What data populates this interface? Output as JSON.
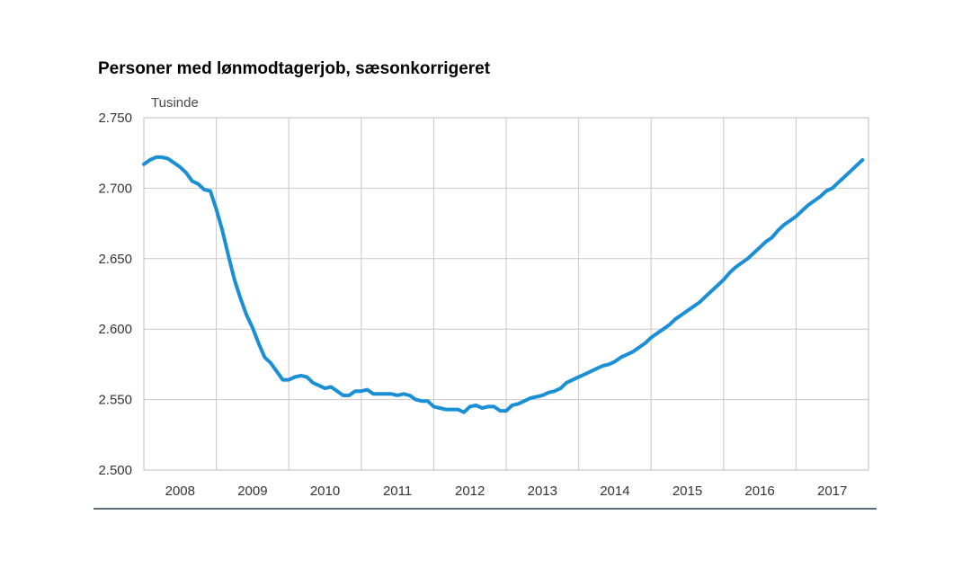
{
  "title": "Personer med lønmodtagerjob, sæsonkorrigeret",
  "unit_label": "Tusinde",
  "chart_data": {
    "type": "line",
    "title": "Personer med lønmodtagerjob, sæsonkorrigeret",
    "ylabel": "Tusinde",
    "xlabel": "",
    "ylim": [
      2500,
      2750
    ],
    "xlim": [
      2008.0,
      2018.0
    ],
    "y_ticks": [
      2500,
      2550,
      2600,
      2650,
      2700,
      2750
    ],
    "y_tick_labels": [
      "2.500",
      "2.550",
      "2.600",
      "2.650",
      "2.700",
      "2.750"
    ],
    "x_tick_labels": [
      "2008",
      "2009",
      "2010",
      "2011",
      "2012",
      "2013",
      "2014",
      "2015",
      "2016",
      "2017"
    ],
    "grid": true,
    "line_color": "#1a8fd6",
    "series": [
      {
        "x": [
          2008.0,
          2008.083,
          2008.167,
          2008.25,
          2008.333,
          2008.417,
          2008.5,
          2008.583,
          2008.667,
          2008.75,
          2008.833,
          2008.917,
          2009.0,
          2009.083,
          2009.167,
          2009.25,
          2009.333,
          2009.417,
          2009.5,
          2009.583,
          2009.667,
          2009.75,
          2009.833,
          2009.917,
          2010.0,
          2010.083,
          2010.167,
          2010.25,
          2010.333,
          2010.417,
          2010.5,
          2010.583,
          2010.667,
          2010.75,
          2010.833,
          2010.917,
          2011.0,
          2011.083,
          2011.167,
          2011.25,
          2011.333,
          2011.417,
          2011.5,
          2011.583,
          2011.667,
          2011.75,
          2011.833,
          2011.917,
          2012.0,
          2012.083,
          2012.167,
          2012.25,
          2012.333,
          2012.417,
          2012.5,
          2012.583,
          2012.667,
          2012.75,
          2012.833,
          2012.917,
          2013.0,
          2013.083,
          2013.167,
          2013.25,
          2013.333,
          2013.417,
          2013.5,
          2013.583,
          2013.667,
          2013.75,
          2013.833,
          2013.917,
          2014.0,
          2014.083,
          2014.167,
          2014.25,
          2014.333,
          2014.417,
          2014.5,
          2014.583,
          2014.667,
          2014.75,
          2014.833,
          2014.917,
          2015.0,
          2015.083,
          2015.167,
          2015.25,
          2015.333,
          2015.417,
          2015.5,
          2015.583,
          2015.667,
          2015.75,
          2015.833,
          2015.917,
          2016.0,
          2016.083,
          2016.167,
          2016.25,
          2016.333,
          2016.417,
          2016.5,
          2016.583,
          2016.667,
          2016.75,
          2016.833,
          2016.917,
          2017.0,
          2017.083,
          2017.167,
          2017.25,
          2017.333,
          2017.417,
          2017.5,
          2017.583,
          2017.667,
          2017.75,
          2017.833,
          2017.917
        ],
        "values": [
          2717,
          2720,
          2722,
          2722,
          2721,
          2718,
          2715,
          2711,
          2705,
          2703,
          2699,
          2698,
          2685,
          2670,
          2652,
          2635,
          2622,
          2610,
          2601,
          2590,
          2580,
          2576,
          2570,
          2564,
          2564,
          2566,
          2567,
          2566,
          2562,
          2560,
          2558,
          2559,
          2556,
          2553,
          2553,
          2556,
          2556,
          2557,
          2554,
          2554,
          2554,
          2554,
          2553,
          2554,
          2553,
          2550,
          2549,
          2549,
          2545,
          2544,
          2543,
          2543,
          2543,
          2541,
          2545,
          2546,
          2544,
          2545,
          2545,
          2542,
          2542,
          2546,
          2547,
          2549,
          2551,
          2552,
          2553,
          2555,
          2556,
          2558,
          2562,
          2564,
          2566,
          2568,
          2570,
          2572,
          2574,
          2575,
          2577,
          2580,
          2582,
          2584,
          2587,
          2590,
          2594,
          2597,
          2600,
          2603,
          2607,
          2610,
          2613,
          2616,
          2619,
          2623,
          2627,
          2631,
          2635,
          2640,
          2644,
          2647,
          2650,
          2654,
          2658,
          2662,
          2665,
          2670,
          2674,
          2677,
          2680,
          2684,
          2688,
          2691,
          2694,
          2698,
          2700,
          2704,
          2708,
          2712,
          2716,
          2720
        ]
      }
    ]
  }
}
